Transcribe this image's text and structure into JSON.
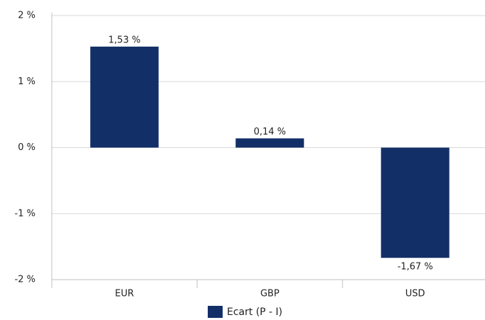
{
  "chart_data": {
    "type": "bar",
    "categories": [
      "EUR",
      "GBP",
      "USD"
    ],
    "series": [
      {
        "name": "Ecart (P - I)",
        "color": "#132f68",
        "values": [
          1.53,
          0.14,
          -1.67
        ],
        "value_labels": [
          "1,53 %",
          "0,14 %",
          "-1,67 %"
        ]
      }
    ],
    "ylim": [
      -2,
      2
    ],
    "yticks": [
      {
        "value": -2,
        "label": "-2 %"
      },
      {
        "value": -1,
        "label": "-1 %"
      },
      {
        "value": 0,
        "label": "0 %"
      },
      {
        "value": 1,
        "label": "1 %"
      },
      {
        "value": 2,
        "label": "2 %"
      }
    ],
    "grid": true,
    "legend": "bottom"
  }
}
